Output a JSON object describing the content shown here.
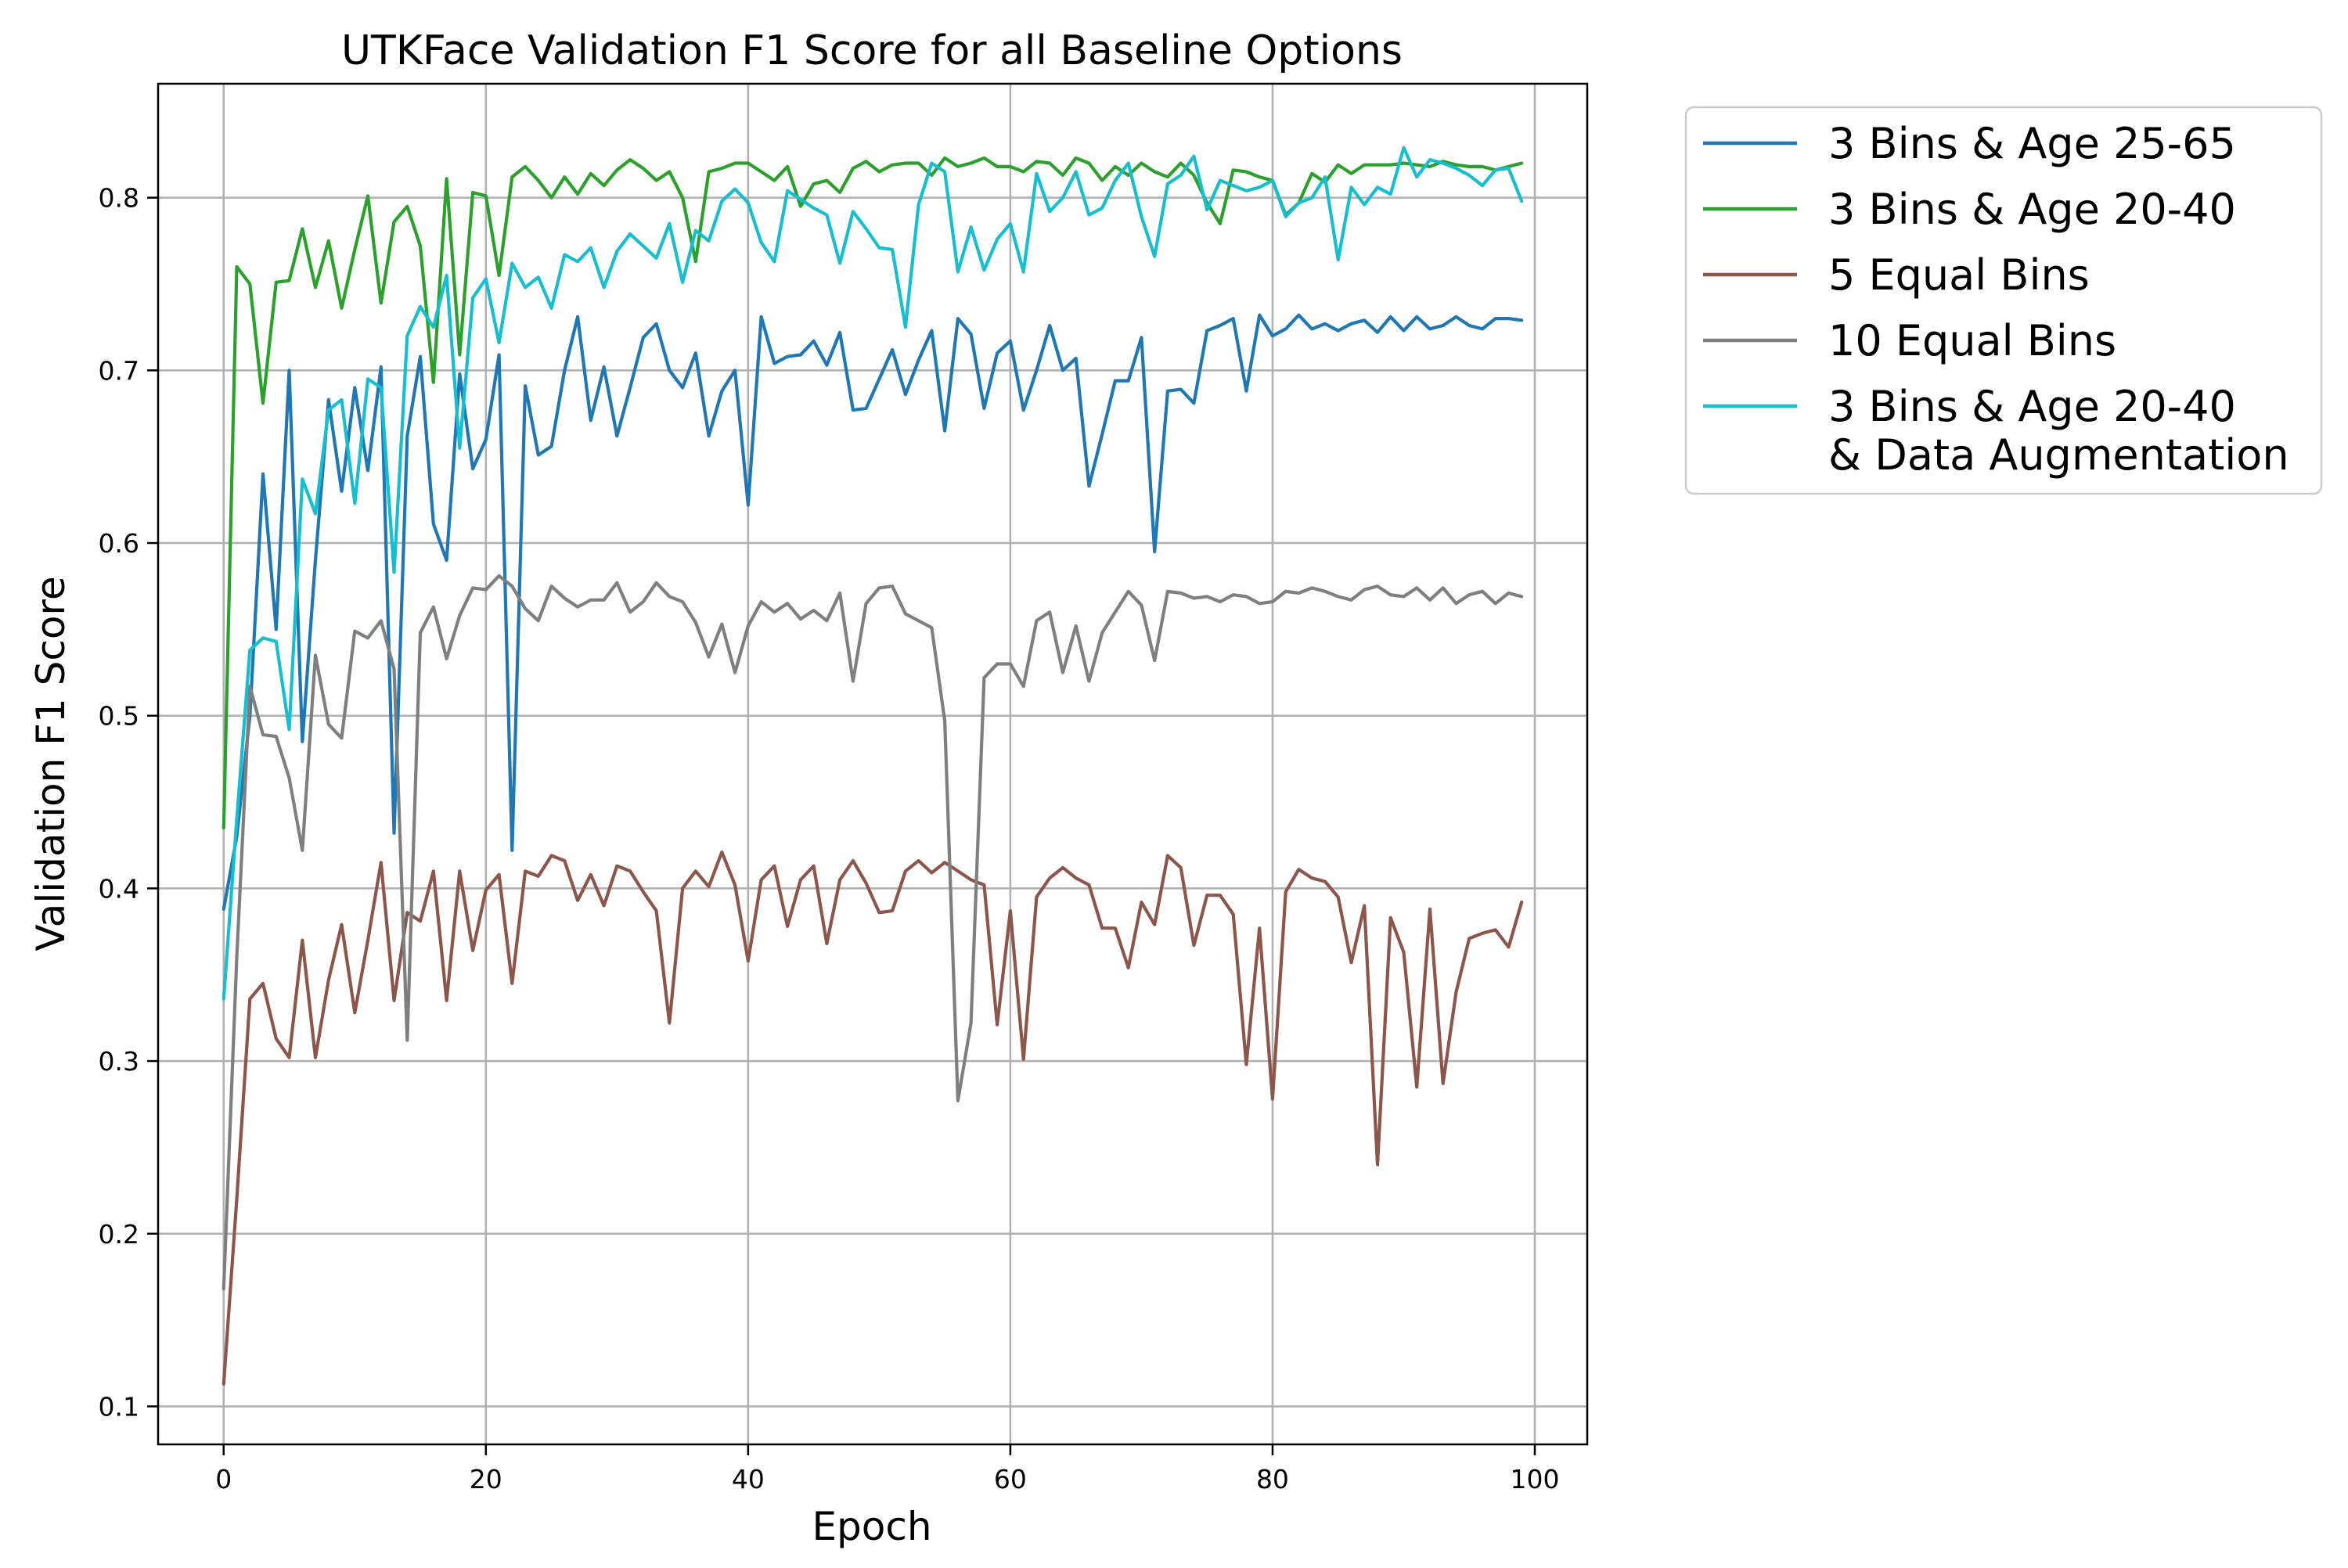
{
  "chart_data": {
    "type": "line",
    "title": "UTKFace Validation F1 Score for all Baseline Options",
    "xlabel": "Epoch",
    "ylabel": "Validation F1 Score",
    "xlim": [
      -5,
      104
    ],
    "ylim": [
      0.078,
      0.866
    ],
    "xticks": [
      0,
      20,
      40,
      60,
      80,
      100
    ],
    "xtick_labels": [
      "0",
      "20",
      "40",
      "60",
      "80",
      "100"
    ],
    "yticks": [
      0.1,
      0.2,
      0.3,
      0.4,
      0.5,
      0.6,
      0.7,
      0.8
    ],
    "ytick_labels": [
      "0.1",
      "0.2",
      "0.3",
      "0.4",
      "0.5",
      "0.6",
      "0.7",
      "0.8"
    ],
    "grid": true,
    "legend_position": "outside-right-top",
    "x": [
      0,
      1,
      2,
      3,
      4,
      5,
      6,
      7,
      8,
      9,
      10,
      11,
      12,
      13,
      14,
      15,
      16,
      17,
      18,
      19,
      20,
      21,
      22,
      23,
      24,
      25,
      26,
      27,
      28,
      29,
      30,
      31,
      32,
      33,
      34,
      35,
      36,
      37,
      38,
      39,
      40,
      41,
      42,
      43,
      44,
      45,
      46,
      47,
      48,
      49,
      50,
      51,
      52,
      53,
      54,
      55,
      56,
      57,
      58,
      59,
      60,
      61,
      62,
      63,
      64,
      65,
      66,
      67,
      68,
      69,
      70,
      71,
      72,
      73,
      74,
      75,
      76,
      77,
      78,
      79,
      80,
      81,
      82,
      83,
      84,
      85,
      86,
      87,
      88,
      89,
      90,
      91,
      92,
      93,
      94,
      95,
      96,
      97,
      98,
      99
    ],
    "series": [
      {
        "name": "3 Bins & Age 25-65",
        "color": "#1f77b4",
        "values": [
          0.388,
          0.43,
          0.5,
          0.64,
          0.55,
          0.7,
          0.485,
          0.59,
          0.683,
          0.63,
          0.69,
          0.642,
          0.702,
          0.432,
          0.662,
          0.708,
          0.611,
          0.59,
          0.698,
          0.643,
          0.66,
          0.709,
          0.422,
          0.691,
          0.651,
          0.656,
          0.7,
          0.731,
          0.671,
          0.702,
          0.662,
          0.69,
          0.719,
          0.727,
          0.7,
          0.69,
          0.71,
          0.662,
          0.688,
          0.7,
          0.622,
          0.731,
          0.704,
          0.708,
          0.709,
          0.717,
          0.703,
          0.722,
          0.677,
          0.678,
          0.695,
          0.712,
          0.686,
          0.706,
          0.723,
          0.665,
          0.73,
          0.721,
          0.678,
          0.71,
          0.717,
          0.677,
          0.7,
          0.726,
          0.7,
          0.707,
          0.633,
          0.663,
          0.694,
          0.694,
          0.719,
          0.595,
          0.688,
          0.689,
          0.681,
          0.723,
          0.726,
          0.73,
          0.688,
          0.732,
          0.72,
          0.724,
          0.732,
          0.724,
          0.727,
          0.723,
          0.727,
          0.729,
          0.722,
          0.731,
          0.723,
          0.731,
          0.724,
          0.726,
          0.731,
          0.726,
          0.724,
          0.73,
          0.73,
          0.729
        ]
      },
      {
        "name": "3 Bins & Age 20-40",
        "color": "#2ca02c",
        "values": [
          0.435,
          0.76,
          0.75,
          0.681,
          0.751,
          0.752,
          0.782,
          0.748,
          0.775,
          0.736,
          0.77,
          0.801,
          0.739,
          0.786,
          0.795,
          0.772,
          0.693,
          0.811,
          0.709,
          0.803,
          0.801,
          0.755,
          0.812,
          0.818,
          0.81,
          0.8,
          0.812,
          0.802,
          0.814,
          0.807,
          0.816,
          0.822,
          0.817,
          0.81,
          0.815,
          0.8,
          0.763,
          0.815,
          0.817,
          0.82,
          0.82,
          0.815,
          0.81,
          0.818,
          0.795,
          0.808,
          0.81,
          0.803,
          0.817,
          0.821,
          0.815,
          0.819,
          0.82,
          0.82,
          0.813,
          0.823,
          0.818,
          0.82,
          0.823,
          0.818,
          0.818,
          0.815,
          0.821,
          0.82,
          0.813,
          0.823,
          0.82,
          0.81,
          0.818,
          0.813,
          0.82,
          0.815,
          0.812,
          0.82,
          0.813,
          0.797,
          0.785,
          0.816,
          0.815,
          0.812,
          0.81,
          0.79,
          0.797,
          0.814,
          0.809,
          0.819,
          0.814,
          0.819,
          0.819,
          0.819,
          0.82,
          0.819,
          0.818,
          0.821,
          0.819,
          0.818,
          0.818,
          0.816,
          0.818,
          0.82
        ]
      },
      {
        "name": "5 Equal Bins",
        "color": "#8c564b",
        "values": [
          0.113,
          0.22,
          0.336,
          0.345,
          0.313,
          0.302,
          0.37,
          0.302,
          0.347,
          0.379,
          0.328,
          0.37,
          0.415,
          0.335,
          0.386,
          0.381,
          0.41,
          0.335,
          0.41,
          0.364,
          0.399,
          0.408,
          0.345,
          0.41,
          0.407,
          0.419,
          0.416,
          0.393,
          0.408,
          0.39,
          0.413,
          0.41,
          0.398,
          0.387,
          0.322,
          0.4,
          0.41,
          0.401,
          0.421,
          0.402,
          0.358,
          0.405,
          0.413,
          0.378,
          0.405,
          0.413,
          0.368,
          0.405,
          0.416,
          0.403,
          0.386,
          0.387,
          0.41,
          0.416,
          0.409,
          0.415,
          0.41,
          0.405,
          0.402,
          0.321,
          0.387,
          0.301,
          0.395,
          0.406,
          0.412,
          0.406,
          0.402,
          0.377,
          0.377,
          0.354,
          0.392,
          0.379,
          0.419,
          0.412,
          0.367,
          0.396,
          0.396,
          0.385,
          0.298,
          0.377,
          0.278,
          0.398,
          0.411,
          0.406,
          0.404,
          0.395,
          0.357,
          0.39,
          0.24,
          0.383,
          0.363,
          0.285,
          0.388,
          0.287,
          0.34,
          0.371,
          0.374,
          0.376,
          0.366,
          0.392
        ]
      },
      {
        "name": "10 Equal Bins",
        "color": "#7f7f7f",
        "values": [
          0.168,
          0.36,
          0.517,
          0.489,
          0.488,
          0.464,
          0.422,
          0.535,
          0.495,
          0.487,
          0.549,
          0.545,
          0.555,
          0.527,
          0.312,
          0.548,
          0.563,
          0.533,
          0.558,
          0.574,
          0.573,
          0.581,
          0.575,
          0.562,
          0.555,
          0.575,
          0.568,
          0.563,
          0.567,
          0.567,
          0.577,
          0.56,
          0.566,
          0.577,
          0.569,
          0.566,
          0.554,
          0.534,
          0.553,
          0.525,
          0.552,
          0.566,
          0.56,
          0.565,
          0.556,
          0.561,
          0.555,
          0.571,
          0.52,
          0.565,
          0.574,
          0.575,
          0.559,
          0.555,
          0.551,
          0.497,
          0.277,
          0.322,
          0.522,
          0.53,
          0.53,
          0.517,
          0.555,
          0.56,
          0.525,
          0.552,
          0.52,
          0.548,
          0.56,
          0.572,
          0.564,
          0.532,
          0.572,
          0.571,
          0.568,
          0.569,
          0.566,
          0.57,
          0.569,
          0.565,
          0.566,
          0.572,
          0.571,
          0.574,
          0.572,
          0.569,
          0.567,
          0.573,
          0.575,
          0.57,
          0.569,
          0.574,
          0.567,
          0.574,
          0.565,
          0.57,
          0.572,
          0.565,
          0.571,
          0.569
        ]
      },
      {
        "name": "3 Bins & Age 20-40\n& Data Augmentation",
        "color": "#17becf",
        "values": [
          0.336,
          0.44,
          0.538,
          0.545,
          0.543,
          0.492,
          0.637,
          0.617,
          0.677,
          0.683,
          0.623,
          0.695,
          0.69,
          0.583,
          0.72,
          0.737,
          0.725,
          0.755,
          0.655,
          0.742,
          0.753,
          0.716,
          0.762,
          0.748,
          0.754,
          0.736,
          0.767,
          0.763,
          0.771,
          0.748,
          0.769,
          0.779,
          0.772,
          0.765,
          0.785,
          0.751,
          0.781,
          0.775,
          0.798,
          0.805,
          0.797,
          0.774,
          0.763,
          0.804,
          0.799,
          0.794,
          0.79,
          0.762,
          0.792,
          0.782,
          0.771,
          0.77,
          0.725,
          0.796,
          0.82,
          0.815,
          0.757,
          0.783,
          0.758,
          0.776,
          0.785,
          0.757,
          0.814,
          0.792,
          0.8,
          0.815,
          0.79,
          0.794,
          0.81,
          0.82,
          0.789,
          0.766,
          0.808,
          0.813,
          0.824,
          0.793,
          0.81,
          0.807,
          0.804,
          0.806,
          0.81,
          0.789,
          0.797,
          0.8,
          0.812,
          0.764,
          0.806,
          0.796,
          0.806,
          0.802,
          0.829,
          0.812,
          0.822,
          0.82,
          0.817,
          0.813,
          0.807,
          0.816,
          0.817,
          0.798
        ]
      }
    ]
  }
}
